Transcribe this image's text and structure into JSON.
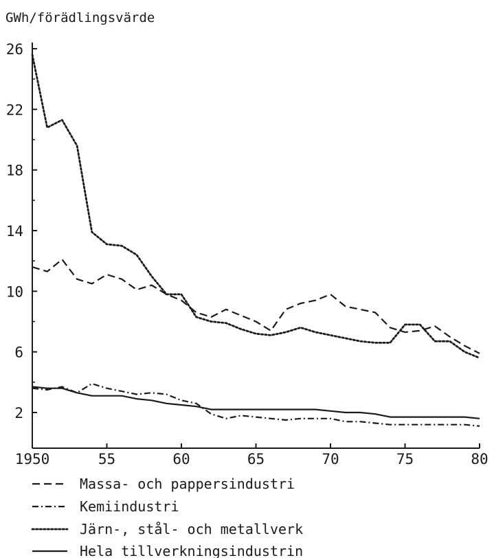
{
  "chart_data": {
    "type": "line",
    "ylabel": "GWh/förädlingsvärde",
    "xlim": [
      1950,
      1980
    ],
    "ylim": [
      0,
      26
    ],
    "x_ticks": [
      {
        "value": 1950,
        "label": "1950"
      },
      {
        "value": 1955,
        "label": "55"
      },
      {
        "value": 1960,
        "label": "60"
      },
      {
        "value": 1965,
        "label": "65"
      },
      {
        "value": 1970,
        "label": "70"
      },
      {
        "value": 1975,
        "label": "75"
      },
      {
        "value": 1980,
        "label": "80"
      }
    ],
    "y_ticks": [
      {
        "value": 2,
        "label": "2"
      },
      {
        "value": 6,
        "label": "6"
      },
      {
        "value": 10,
        "label": "10"
      },
      {
        "value": 14,
        "label": "14"
      },
      {
        "value": 18,
        "label": "18"
      },
      {
        "value": 22,
        "label": "22"
      },
      {
        "value": 26,
        "label": "26"
      }
    ],
    "grid": false,
    "legend_position": "bottom",
    "x": [
      1950,
      1951,
      1952,
      1953,
      1954,
      1955,
      1956,
      1957,
      1958,
      1959,
      1960,
      1961,
      1962,
      1963,
      1964,
      1965,
      1966,
      1967,
      1968,
      1969,
      1970,
      1971,
      1972,
      1973,
      1974,
      1975,
      1976,
      1977,
      1978,
      1979,
      1980
    ],
    "series": [
      {
        "name": "Massa- och pappersindustri",
        "style": "dashed",
        "values": [
          11.6,
          11.3,
          12.1,
          10.8,
          10.5,
          11.1,
          10.8,
          10.1,
          10.4,
          9.8,
          9.4,
          8.6,
          8.3,
          8.8,
          8.4,
          8.0,
          7.4,
          8.8,
          9.2,
          9.4,
          9.8,
          9.0,
          8.8,
          8.6,
          7.6,
          7.3,
          7.4,
          7.7,
          7.0,
          6.4,
          5.9
        ]
      },
      {
        "name": "Kemiindustri",
        "style": "dashdot",
        "values": [
          3.6,
          3.5,
          3.7,
          3.3,
          3.9,
          3.6,
          3.4,
          3.2,
          3.3,
          3.2,
          2.8,
          2.6,
          1.9,
          1.6,
          1.8,
          1.7,
          1.6,
          1.5,
          1.6,
          1.6,
          1.6,
          1.4,
          1.4,
          1.3,
          1.2,
          1.2,
          1.2,
          1.2,
          1.2,
          1.2,
          1.1
        ]
      },
      {
        "name": "Järn-, stål- och metallverk",
        "style": "dotted",
        "values": [
          25.6,
          20.8,
          21.3,
          19.6,
          13.9,
          13.1,
          13.0,
          12.4,
          11.0,
          9.8,
          9.8,
          8.3,
          8.0,
          7.9,
          7.5,
          7.2,
          7.1,
          7.3,
          7.6,
          7.3,
          7.1,
          6.9,
          6.7,
          6.6,
          6.6,
          7.8,
          7.8,
          6.7,
          6.7,
          6.0,
          5.6
        ]
      },
      {
        "name": "Hela tillverkningsindustrin",
        "style": "solid",
        "values": [
          3.7,
          3.6,
          3.6,
          3.3,
          3.1,
          3.1,
          3.1,
          2.9,
          2.8,
          2.6,
          2.5,
          2.4,
          2.2,
          2.2,
          2.2,
          2.2,
          2.2,
          2.2,
          2.2,
          2.2,
          2.1,
          2.0,
          2.0,
          1.9,
          1.7,
          1.7,
          1.7,
          1.7,
          1.7,
          1.7,
          1.6
        ]
      }
    ]
  }
}
